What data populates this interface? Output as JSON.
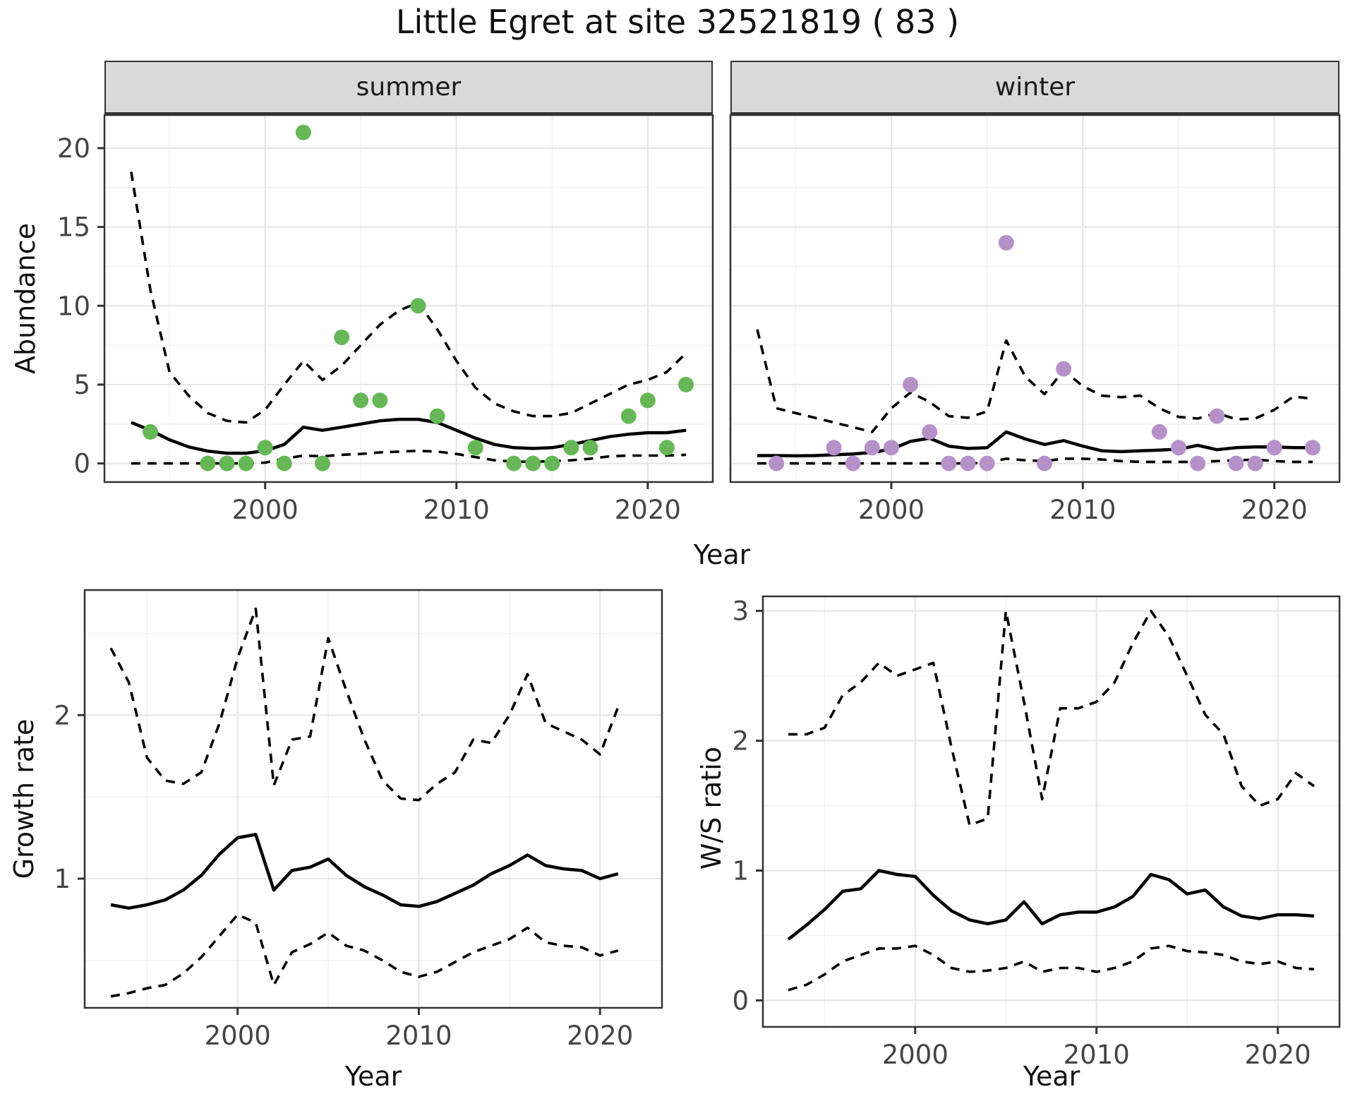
{
  "title": "Little Egret at site 32521819 ( 83 )",
  "facets": {
    "summer_label": "summer",
    "winter_label": "winter"
  },
  "axis_labels": {
    "year": "Year",
    "abundance": "Abundance",
    "growth": "Growth rate",
    "ws": "W/S ratio"
  },
  "colors": {
    "summer_point": "#65b855",
    "winter_point": "#b691c9",
    "line": "#000000",
    "strip_bg": "#d9d9d9",
    "grid_major": "#e7e7e7",
    "grid_minor": "#f3f3f3",
    "axis_text": "#444444",
    "panel_border": "#333333"
  },
  "chart_data": [
    {
      "id": "summer",
      "type": "scatter",
      "facet": "summer",
      "xlabel": "Year",
      "ylabel": "Abundance",
      "xlim": [
        1991.6,
        2023.4
      ],
      "ylim": [
        -1.18,
        22.1
      ],
      "x_ticks": [
        2000,
        2010,
        2020
      ],
      "x_tick_labels": [
        "2000",
        "2010",
        "2020"
      ],
      "x_minor": [
        1995,
        2005,
        2015
      ],
      "y_ticks": [
        0,
        5,
        10,
        15,
        20
      ],
      "y_tick_labels": [
        "0",
        "5",
        "10",
        "15",
        "20"
      ],
      "y_minor": [
        2.5,
        7.5,
        12.5,
        17.5
      ],
      "legend": "none",
      "grid": true,
      "points": {
        "x": [
          1994,
          1997,
          1998,
          1999,
          2000,
          2001,
          2002,
          2003,
          2004,
          2005,
          2006,
          2008,
          2009,
          2011,
          2013,
          2014,
          2015,
          2016,
          2017,
          2019,
          2020,
          2021,
          2022
        ],
        "y": [
          2,
          0,
          0,
          0,
          1,
          0,
          21,
          0,
          8,
          4,
          4,
          10,
          3,
          1,
          0,
          0,
          0,
          1,
          1,
          3,
          4,
          1,
          5
        ]
      },
      "series": [
        {
          "name": "mean",
          "style": "solid",
          "x": [
            1993,
            1994,
            1995,
            1996,
            1997,
            1998,
            1999,
            2000,
            2001,
            2002,
            2003,
            2004,
            2005,
            2006,
            2007,
            2008,
            2009,
            2010,
            2011,
            2012,
            2013,
            2014,
            2015,
            2016,
            2017,
            2018,
            2019,
            2020,
            2021,
            2022
          ],
          "y": [
            2.6,
            2.1,
            1.5,
            1.05,
            0.78,
            0.65,
            0.65,
            0.8,
            1.2,
            2.3,
            2.1,
            2.3,
            2.5,
            2.7,
            2.8,
            2.8,
            2.6,
            2.1,
            1.6,
            1.2,
            1.0,
            0.95,
            1.0,
            1.2,
            1.45,
            1.7,
            1.85,
            1.95,
            1.95,
            2.1
          ]
        },
        {
          "name": "upper_ci",
          "style": "dashed",
          "x": [
            1993,
            1994,
            1995,
            1996,
            1997,
            1998,
            1999,
            2000,
            2001,
            2002,
            2003,
            2004,
            2005,
            2006,
            2007,
            2008,
            2009,
            2010,
            2011,
            2012,
            2013,
            2014,
            2015,
            2016,
            2017,
            2018,
            2019,
            2020,
            2021,
            2022
          ],
          "y": [
            18.5,
            11.0,
            5.8,
            4.3,
            3.2,
            2.7,
            2.6,
            3.4,
            5.0,
            6.5,
            5.3,
            6.2,
            7.5,
            8.8,
            9.7,
            10.2,
            8.5,
            6.5,
            4.8,
            3.8,
            3.3,
            3.0,
            3.0,
            3.2,
            3.8,
            4.4,
            5.0,
            5.3,
            5.8,
            7.0
          ]
        },
        {
          "name": "lower_ci",
          "style": "dashed",
          "x": [
            1993,
            1994,
            1995,
            1996,
            1997,
            1998,
            1999,
            2000,
            2001,
            2002,
            2003,
            2004,
            2005,
            2006,
            2007,
            2008,
            2009,
            2010,
            2011,
            2012,
            2013,
            2014,
            2015,
            2016,
            2017,
            2018,
            2019,
            2020,
            2021,
            2022
          ],
          "y": [
            0,
            0,
            0,
            0,
            0,
            0,
            0,
            0.05,
            0.3,
            0.5,
            0.45,
            0.55,
            0.6,
            0.7,
            0.75,
            0.8,
            0.75,
            0.6,
            0.4,
            0.2,
            0.12,
            0.1,
            0.15,
            0.2,
            0.3,
            0.45,
            0.5,
            0.5,
            0.5,
            0.55
          ]
        }
      ]
    },
    {
      "id": "winter",
      "type": "scatter",
      "facet": "winter",
      "xlabel": "Year",
      "ylabel": "Abundance",
      "xlim": [
        1991.6,
        2023.4
      ],
      "ylim": [
        -1.18,
        22.1
      ],
      "x_ticks": [
        2000,
        2010,
        2020
      ],
      "x_tick_labels": [
        "2000",
        "2010",
        "2020"
      ],
      "x_minor": [
        1995,
        2005,
        2015
      ],
      "y_ticks": [
        0,
        5,
        10,
        15,
        20
      ],
      "y_tick_labels": [],
      "y_minor": [
        2.5,
        7.5,
        12.5,
        17.5
      ],
      "legend": "none",
      "grid": true,
      "points": {
        "x": [
          1994,
          1997,
          1998,
          1999,
          2000,
          2001,
          2002,
          2003,
          2004,
          2005,
          2006,
          2008,
          2009,
          2014,
          2015,
          2016,
          2017,
          2018,
          2019,
          2020,
          2022
        ],
        "y": [
          0,
          1,
          0,
          1,
          1,
          5,
          2,
          0,
          0,
          0,
          14,
          0,
          6,
          2,
          1,
          0,
          3,
          0,
          0,
          1,
          1
        ]
      },
      "series": [
        {
          "name": "mean",
          "style": "solid",
          "x": [
            1993,
            1994,
            1995,
            1996,
            1997,
            1998,
            1999,
            2000,
            2001,
            2002,
            2003,
            2004,
            2005,
            2006,
            2007,
            2008,
            2009,
            2010,
            2011,
            2012,
            2013,
            2014,
            2015,
            2016,
            2017,
            2018,
            2019,
            2020,
            2021,
            2022
          ],
          "y": [
            0.5,
            0.5,
            0.48,
            0.5,
            0.55,
            0.6,
            0.7,
            0.9,
            1.4,
            1.6,
            1.1,
            0.95,
            1.0,
            2.0,
            1.55,
            1.2,
            1.45,
            1.1,
            0.8,
            0.75,
            0.8,
            0.85,
            0.9,
            1.15,
            0.87,
            1.0,
            1.05,
            1.05,
            1.0,
            1.0
          ]
        },
        {
          "name": "upper_ci",
          "style": "dashed",
          "x": [
            1993,
            1994,
            1995,
            1996,
            1997,
            1998,
            1999,
            2000,
            2001,
            2002,
            2003,
            2004,
            2005,
            2006,
            2007,
            2008,
            2009,
            2010,
            2011,
            2012,
            2013,
            2014,
            2015,
            2016,
            2017,
            2018,
            2019,
            2020,
            2021,
            2022
          ],
          "y": [
            8.5,
            3.5,
            3.2,
            2.9,
            2.6,
            2.3,
            2.0,
            3.5,
            4.5,
            3.9,
            3.0,
            2.9,
            3.3,
            7.8,
            5.5,
            4.4,
            5.9,
            4.9,
            4.3,
            4.2,
            4.3,
            3.5,
            2.95,
            2.85,
            3.2,
            2.8,
            2.85,
            3.4,
            4.25,
            4.1
          ]
        },
        {
          "name": "lower_ci",
          "style": "dashed",
          "x": [
            1993,
            1994,
            1995,
            1996,
            1997,
            1998,
            1999,
            2000,
            2001,
            2002,
            2003,
            2004,
            2005,
            2006,
            2007,
            2008,
            2009,
            2010,
            2011,
            2012,
            2013,
            2014,
            2015,
            2016,
            2017,
            2018,
            2019,
            2020,
            2021,
            2022
          ],
          "y": [
            0,
            0,
            0,
            0,
            0,
            0,
            0,
            0,
            0,
            0,
            0,
            0,
            0.05,
            0.3,
            0.2,
            0.15,
            0.3,
            0.3,
            0.25,
            0.15,
            0.1,
            0.1,
            0.1,
            0.1,
            0.15,
            0.2,
            0.25,
            0.15,
            0.1,
            0.1
          ]
        }
      ]
    },
    {
      "id": "growth",
      "type": "line",
      "xlabel": "Year",
      "ylabel": "Growth rate",
      "xlim": [
        1991.56,
        2023.42
      ],
      "ylim": [
        0.21,
        2.765
      ],
      "x_ticks": [
        2000,
        2010,
        2020
      ],
      "x_tick_labels": [
        "2000",
        "2010",
        "2020"
      ],
      "x_minor": [
        1995,
        2005,
        2015
      ],
      "y_ticks": [
        1,
        2
      ],
      "y_tick_labels": [
        "1",
        "2"
      ],
      "y_minor": [
        0.5,
        1.5,
        2.5
      ],
      "legend": "none",
      "grid": true,
      "series": [
        {
          "name": "mean",
          "style": "solid",
          "x": [
            1993,
            1994,
            1995,
            1996,
            1997,
            1998,
            1999,
            2000,
            2001,
            2002,
            2003,
            2004,
            2005,
            2006,
            2007,
            2008,
            2009,
            2010,
            2011,
            2012,
            2013,
            2014,
            2015,
            2016,
            2017,
            2018,
            2019,
            2020,
            2021
          ],
          "y": [
            0.84,
            0.82,
            0.84,
            0.87,
            0.93,
            1.02,
            1.15,
            1.25,
            1.27,
            0.93,
            1.05,
            1.07,
            1.12,
            1.02,
            0.95,
            0.9,
            0.84,
            0.83,
            0.86,
            0.91,
            0.96,
            1.03,
            1.08,
            1.145,
            1.08,
            1.06,
            1.05,
            1.0,
            1.03
          ]
        },
        {
          "name": "upper_ci",
          "style": "dashed",
          "x": [
            1993,
            1994,
            1995,
            1996,
            1997,
            1998,
            1999,
            2000,
            2001,
            2002,
            2003,
            2004,
            2005,
            2006,
            2007,
            2008,
            2009,
            2010,
            2011,
            2012,
            2013,
            2014,
            2015,
            2016,
            2017,
            2018,
            2019,
            2020,
            2021
          ],
          "y": [
            2.41,
            2.2,
            1.74,
            1.6,
            1.58,
            1.65,
            1.95,
            2.35,
            2.65,
            1.57,
            1.85,
            1.87,
            2.47,
            2.15,
            1.85,
            1.6,
            1.49,
            1.48,
            1.58,
            1.65,
            1.85,
            1.83,
            2.0,
            2.25,
            1.95,
            1.9,
            1.85,
            1.76,
            2.05
          ]
        },
        {
          "name": "lower_ci",
          "style": "dashed",
          "x": [
            1993,
            1994,
            1995,
            1996,
            1997,
            1998,
            1999,
            2000,
            2001,
            2002,
            2003,
            2004,
            2005,
            2006,
            2007,
            2008,
            2009,
            2010,
            2011,
            2012,
            2013,
            2014,
            2015,
            2016,
            2017,
            2018,
            2019,
            2020,
            2021
          ],
          "y": [
            0.28,
            0.3,
            0.33,
            0.35,
            0.42,
            0.52,
            0.65,
            0.78,
            0.73,
            0.35,
            0.55,
            0.6,
            0.67,
            0.59,
            0.56,
            0.5,
            0.43,
            0.4,
            0.43,
            0.49,
            0.55,
            0.59,
            0.63,
            0.7,
            0.61,
            0.59,
            0.58,
            0.53,
            0.56
          ]
        }
      ]
    },
    {
      "id": "ws",
      "type": "line",
      "xlabel": "Year",
      "ylabel": "W/S ratio",
      "xlim": [
        1991.6,
        2023.4
      ],
      "ylim": [
        -0.204,
        3.112
      ],
      "x_ticks": [
        2000,
        2010,
        2020
      ],
      "x_tick_labels": [
        "2000",
        "2010",
        "2020"
      ],
      "x_minor": [
        1995,
        2005,
        2015
      ],
      "y_ticks": [
        0,
        1,
        2,
        3
      ],
      "y_tick_labels": [
        "0",
        "1",
        "2",
        "3"
      ],
      "y_minor": [
        0.5,
        1.5,
        2.5
      ],
      "legend": "none",
      "grid": true,
      "series": [
        {
          "name": "mean",
          "style": "solid",
          "x": [
            1993,
            1994,
            1995,
            1996,
            1997,
            1998,
            1999,
            2000,
            2001,
            2002,
            2003,
            2004,
            2005,
            2006,
            2007,
            2008,
            2009,
            2010,
            2011,
            2012,
            2013,
            2014,
            2015,
            2016,
            2017,
            2018,
            2019,
            2020,
            2021,
            2022
          ],
          "y": [
            0.47,
            0.58,
            0.7,
            0.84,
            0.86,
            1.0,
            0.97,
            0.955,
            0.81,
            0.69,
            0.62,
            0.59,
            0.62,
            0.76,
            0.59,
            0.66,
            0.68,
            0.68,
            0.72,
            0.8,
            0.97,
            0.93,
            0.82,
            0.85,
            0.72,
            0.65,
            0.63,
            0.66,
            0.66,
            0.65
          ]
        },
        {
          "name": "upper_ci",
          "style": "dashed",
          "x": [
            1993,
            1994,
            1995,
            1996,
            1997,
            1998,
            1999,
            2000,
            2001,
            2002,
            2003,
            2004,
            2005,
            2006,
            2007,
            2008,
            2009,
            2010,
            2011,
            2012,
            2013,
            2014,
            2015,
            2016,
            2017,
            2018,
            2019,
            2020,
            2021,
            2022
          ],
          "y": [
            2.05,
            2.05,
            2.1,
            2.35,
            2.45,
            2.6,
            2.5,
            2.55,
            2.6,
            1.95,
            1.35,
            1.4,
            3.0,
            2.3,
            1.55,
            2.25,
            2.25,
            2.3,
            2.45,
            2.75,
            3.0,
            2.8,
            2.5,
            2.2,
            2.05,
            1.65,
            1.5,
            1.55,
            1.75,
            1.65
          ]
        },
        {
          "name": "lower_ci",
          "style": "dashed",
          "x": [
            1993,
            1994,
            1995,
            1996,
            1997,
            1998,
            1999,
            2000,
            2001,
            2002,
            2003,
            2004,
            2005,
            2006,
            2007,
            2008,
            2009,
            2010,
            2011,
            2012,
            2013,
            2014,
            2015,
            2016,
            2017,
            2018,
            2019,
            2020,
            2021,
            2022
          ],
          "y": [
            0.08,
            0.12,
            0.2,
            0.3,
            0.35,
            0.4,
            0.4,
            0.42,
            0.35,
            0.25,
            0.22,
            0.23,
            0.25,
            0.3,
            0.22,
            0.25,
            0.25,
            0.22,
            0.25,
            0.3,
            0.4,
            0.42,
            0.38,
            0.37,
            0.35,
            0.3,
            0.28,
            0.3,
            0.25,
            0.24
          ]
        }
      ]
    }
  ]
}
